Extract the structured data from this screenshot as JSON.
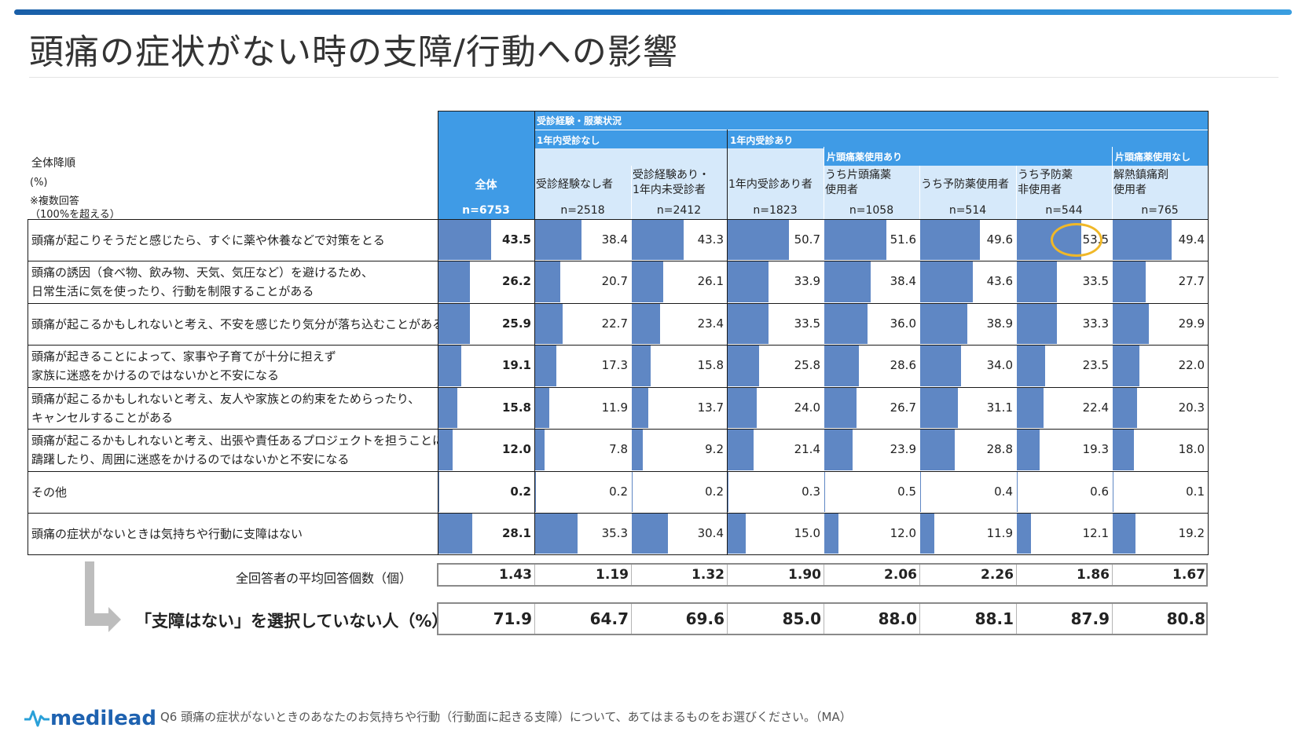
{
  "title": "頭痛の症状がない時の支障/行動への影響",
  "header": {
    "sort_label": "全体降順",
    "unit_label": "(%)",
    "note_line1": "※複数回答",
    "note_line2": "（100%を超える）",
    "group_top": "受診経験・服薬状況",
    "group_no_visit": "1年内受診なし",
    "group_visit": "1年内受診あり",
    "group_kata_use": "片頭痛薬使用あり",
    "group_kata_nouse": "片頭痛薬使用なし"
  },
  "chart_data": {
    "type": "table",
    "title": "頭痛の症状がない時の支障/行動への影響",
    "columns": [
      {
        "label": "全体",
        "n": "n=6753"
      },
      {
        "label": "受診経験なし者",
        "n": "n=2518"
      },
      {
        "label": "受診経験あり・\n1年内未受診者",
        "n": "n=2412"
      },
      {
        "label": "1年内受診あり者",
        "n": "n=1823"
      },
      {
        "label": "うち片頭痛薬\n使用者",
        "n": "n=1058"
      },
      {
        "label": "うち予防薬使用者",
        "n": "n=514"
      },
      {
        "label": "うち予防薬\n非使用者",
        "n": "n=544"
      },
      {
        "label": "解熱鎮痛剤\n使用者",
        "n": "n=765"
      }
    ],
    "rows": [
      {
        "label": "頭痛が起こりそうだと感じたら、すぐに薬や休養などで対策をとる",
        "values": [
          43.5,
          38.4,
          43.3,
          50.7,
          51.6,
          49.6,
          53.5,
          49.4
        ],
        "display": [
          "43.5",
          "38.4",
          "43.3",
          "50.7",
          "51.6",
          "49.6",
          "53.5",
          "49.4"
        ]
      },
      {
        "label": "頭痛の誘因（食べ物、飲み物、天気、気圧など）を避けるため、\n日常生活に気を使ったり、行動を制限することがある",
        "values": [
          26.2,
          20.7,
          26.1,
          33.9,
          38.4,
          43.6,
          33.5,
          27.7
        ],
        "display": [
          "26.2",
          "20.7",
          "26.1",
          "33.9",
          "38.4",
          "43.6",
          "33.5",
          "27.7"
        ]
      },
      {
        "label": "頭痛が起こるかもしれないと考え、不安を感じたり気分が落ち込むことがある",
        "values": [
          25.9,
          22.7,
          23.4,
          33.5,
          36.0,
          38.9,
          33.3,
          29.9
        ],
        "display": [
          "25.9",
          "22.7",
          "23.4",
          "33.5",
          "36.0",
          "38.9",
          "33.3",
          "29.9"
        ]
      },
      {
        "label": "頭痛が起きることによって、家事や子育てが十分に担えず\n家族に迷惑をかけるのではないかと不安になる",
        "values": [
          19.1,
          17.3,
          15.8,
          25.8,
          28.6,
          34.0,
          23.5,
          22.0
        ],
        "display": [
          "19.1",
          "17.3",
          "15.8",
          "25.8",
          "28.6",
          "34.0",
          "23.5",
          "22.0"
        ]
      },
      {
        "label": "頭痛が起こるかもしれないと考え、友人や家族との約束をためらったり、\nキャンセルすることがある",
        "values": [
          15.8,
          11.9,
          13.7,
          24.0,
          26.7,
          31.1,
          22.4,
          20.3
        ],
        "display": [
          "15.8",
          "11.9",
          "13.7",
          "24.0",
          "26.7",
          "31.1",
          "22.4",
          "20.3"
        ]
      },
      {
        "label": "頭痛が起こるかもしれないと考え、出張や責任あるプロジェクトを担うことに\n躊躇したり、周囲に迷惑をかけるのではないかと不安になる",
        "values": [
          12.0,
          7.8,
          9.2,
          21.4,
          23.9,
          28.8,
          19.3,
          18.0
        ],
        "display": [
          "12.0",
          "7.8",
          "9.2",
          "21.4",
          "23.9",
          "28.8",
          "19.3",
          "18.0"
        ]
      },
      {
        "label": "その他",
        "values": [
          0.2,
          0.2,
          0.2,
          0.3,
          0.5,
          0.4,
          0.6,
          0.1
        ],
        "display": [
          "0.2",
          "0.2",
          "0.2",
          "0.3",
          "0.5",
          "0.4",
          "0.6",
          "0.1"
        ]
      },
      {
        "label": "頭痛の症状がないときは気持ちや行動に支障はない",
        "values": [
          28.1,
          35.3,
          30.4,
          15.0,
          12.0,
          11.9,
          12.1,
          19.2
        ],
        "display": [
          "28.1",
          "35.3",
          "30.4",
          "15.0",
          "12.0",
          "11.9",
          "12.1",
          "19.2"
        ]
      }
    ],
    "bar_scale_max": 100,
    "highlight": {
      "row": 0,
      "col": 6,
      "value": "53.5"
    },
    "summary": [
      {
        "label": "全回答者の平均回答個数（個）",
        "values": [
          "1.43",
          "1.19",
          "1.32",
          "1.90",
          "2.06",
          "2.26",
          "1.86",
          "1.67"
        ]
      },
      {
        "label": "「支障はない」を選択していない人（%）",
        "values": [
          "71.9",
          "64.7",
          "69.6",
          "85.0",
          "88.0",
          "88.1",
          "87.9",
          "80.8"
        ]
      }
    ]
  },
  "footer": {
    "logo": "medilead",
    "question": "Q6  頭痛の症状がないときのあなたのお気持ちや行動（行動面に起きる支障）について、あてはまるものをお選びください。（MA）"
  }
}
